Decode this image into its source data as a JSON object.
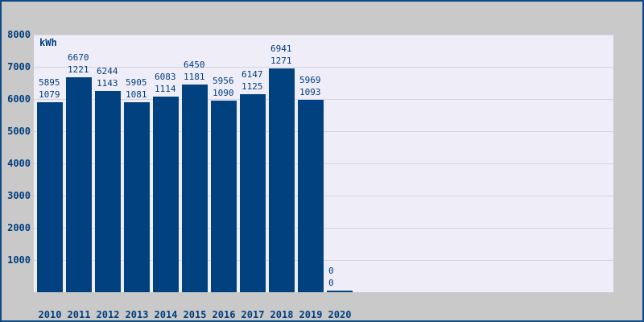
{
  "window": {
    "outer_background": "#c9c9c9",
    "border_color": "#0e4a85"
  },
  "chart_data": {
    "type": "bar",
    "title": "",
    "unit_label": "kWh",
    "xlabel": "",
    "ylabel": "",
    "categories": [
      "2010",
      "2011",
      "2012",
      "2013",
      "2014",
      "2015",
      "2016",
      "2017",
      "2018",
      "2019",
      "2020"
    ],
    "series": [
      {
        "name": "primary",
        "values": [
          5895,
          6670,
          6244,
          5905,
          6083,
          6450,
          5956,
          6147,
          6941,
          5969,
          0
        ]
      },
      {
        "name": "secondary",
        "values": [
          1079,
          1221,
          1143,
          1081,
          1114,
          1181,
          1090,
          1125,
          1271,
          1093,
          0
        ]
      }
    ],
    "bar_value_labels_shown": true,
    "ylim": [
      0,
      8000
    ],
    "yticks": [
      1000,
      2000,
      3000,
      4000,
      5000,
      6000,
      7000,
      8000
    ],
    "grid": true,
    "legend": "none",
    "colors": {
      "bar": "#02417f",
      "text": "#003e7e",
      "plot_background": "#efeef8",
      "gridline": "#d6d4da"
    }
  }
}
